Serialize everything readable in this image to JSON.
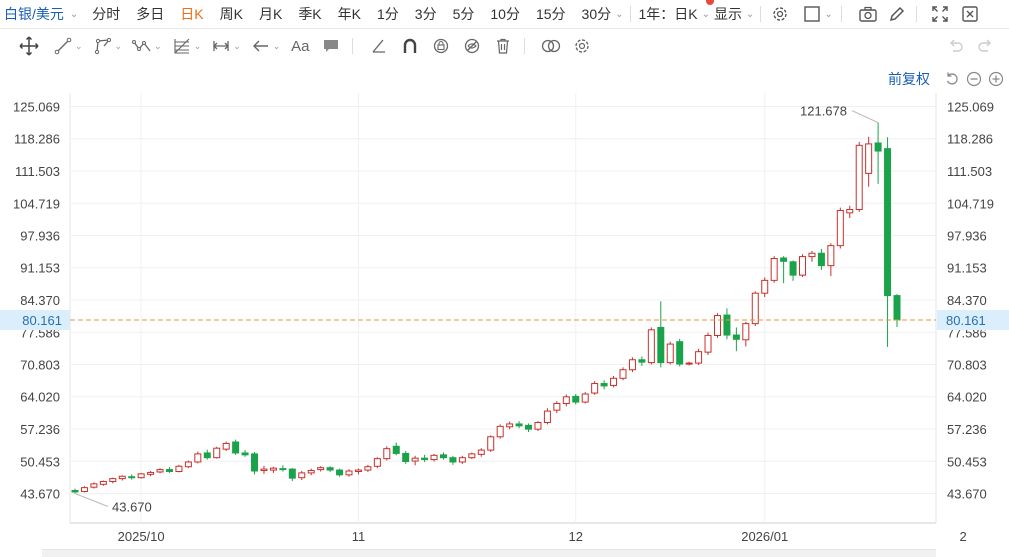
{
  "toolbar": {
    "symbol": "白银/美元",
    "periods": [
      "分时",
      "多日",
      "日K",
      "周K",
      "月K",
      "季K",
      "年K",
      "1分",
      "3分",
      "5分",
      "10分",
      "15分",
      "30分"
    ],
    "active_period": "日K",
    "range_select": "1年：日K",
    "display_menu": "显示"
  },
  "drawing_tools": [
    "move-icon",
    "line-icon",
    "polyline-icon",
    "zigzag-icon",
    "fib-icon",
    "measure-icon",
    "arrow-icon",
    "text-icon",
    "comment-icon",
    "ruler-icon",
    "magnet-icon",
    "lock-icon",
    "hide-icon",
    "trash-icon",
    "visibility-icon",
    "settings-icon"
  ],
  "adjust_label": "前复权",
  "current_price_label": "80.161",
  "max_label": "121.678",
  "min_label": "43.670",
  "colors": {
    "up": "#c9302c",
    "down": "#1aa34a",
    "accent": "#e8711c",
    "link": "#1a5fb4",
    "price_line": "#e8913c"
  },
  "chart_data": {
    "type": "candlestick",
    "title": "白银/美元",
    "xlabel": "",
    "ylabel": "",
    "ylim": [
      40.262,
      128.478
    ],
    "y_ticks": [
      43.67,
      50.453,
      57.236,
      64.02,
      70.803,
      77.586,
      84.37,
      91.153,
      97.936,
      104.719,
      111.503,
      118.286,
      125.069
    ],
    "x_ticks": [
      "2025/10",
      "11",
      "12",
      "2026/01",
      "2"
    ],
    "current_price": 80.161,
    "max": 121.678,
    "min": 43.67,
    "candles": [
      {
        "o": 44.3,
        "h": 44.7,
        "l": 43.67,
        "c": 44.0
      },
      {
        "o": 44.1,
        "h": 45.2,
        "l": 43.9,
        "c": 44.9
      },
      {
        "o": 45.0,
        "h": 46.0,
        "l": 44.7,
        "c": 45.7
      },
      {
        "o": 45.6,
        "h": 46.4,
        "l": 45.3,
        "c": 46.2
      },
      {
        "o": 46.2,
        "h": 47.0,
        "l": 45.8,
        "c": 46.8
      },
      {
        "o": 46.8,
        "h": 47.5,
        "l": 46.4,
        "c": 47.3
      },
      {
        "o": 47.2,
        "h": 47.7,
        "l": 46.6,
        "c": 47.0
      },
      {
        "o": 47.0,
        "h": 48.0,
        "l": 46.8,
        "c": 47.8
      },
      {
        "o": 47.7,
        "h": 48.4,
        "l": 47.3,
        "c": 48.1
      },
      {
        "o": 48.2,
        "h": 49.0,
        "l": 47.9,
        "c": 48.7
      },
      {
        "o": 48.7,
        "h": 49.2,
        "l": 48.0,
        "c": 48.3
      },
      {
        "o": 48.3,
        "h": 49.7,
        "l": 48.1,
        "c": 49.4
      },
      {
        "o": 49.3,
        "h": 50.6,
        "l": 49.0,
        "c": 50.3
      },
      {
        "o": 50.3,
        "h": 52.5,
        "l": 50.0,
        "c": 52.0
      },
      {
        "o": 52.2,
        "h": 52.9,
        "l": 50.8,
        "c": 51.2
      },
      {
        "o": 51.2,
        "h": 53.5,
        "l": 51.0,
        "c": 53.2
      },
      {
        "o": 53.0,
        "h": 54.6,
        "l": 52.6,
        "c": 54.2
      },
      {
        "o": 54.5,
        "h": 55.0,
        "l": 51.8,
        "c": 52.2
      },
      {
        "o": 52.2,
        "h": 52.8,
        "l": 51.4,
        "c": 51.8
      },
      {
        "o": 52.0,
        "h": 52.4,
        "l": 47.7,
        "c": 48.4
      },
      {
        "o": 48.5,
        "h": 49.5,
        "l": 47.8,
        "c": 48.8
      },
      {
        "o": 48.6,
        "h": 49.3,
        "l": 48.0,
        "c": 49.0
      },
      {
        "o": 48.9,
        "h": 49.6,
        "l": 48.3,
        "c": 48.7
      },
      {
        "o": 48.8,
        "h": 49.0,
        "l": 46.3,
        "c": 46.9
      },
      {
        "o": 47.0,
        "h": 48.4,
        "l": 46.5,
        "c": 48.0
      },
      {
        "o": 48.0,
        "h": 48.9,
        "l": 47.5,
        "c": 48.5
      },
      {
        "o": 48.7,
        "h": 49.4,
        "l": 48.3,
        "c": 49.1
      },
      {
        "o": 49.1,
        "h": 49.4,
        "l": 48.2,
        "c": 48.6
      },
      {
        "o": 48.6,
        "h": 48.9,
        "l": 47.2,
        "c": 47.6
      },
      {
        "o": 47.6,
        "h": 48.8,
        "l": 47.2,
        "c": 48.4
      },
      {
        "o": 48.3,
        "h": 48.9,
        "l": 47.7,
        "c": 48.6
      },
      {
        "o": 48.6,
        "h": 49.7,
        "l": 48.2,
        "c": 49.3
      },
      {
        "o": 49.4,
        "h": 51.3,
        "l": 49.0,
        "c": 51.0
      },
      {
        "o": 51.0,
        "h": 53.6,
        "l": 50.6,
        "c": 53.1
      },
      {
        "o": 53.6,
        "h": 54.4,
        "l": 51.7,
        "c": 52.1
      },
      {
        "o": 52.1,
        "h": 52.6,
        "l": 49.9,
        "c": 50.4
      },
      {
        "o": 50.5,
        "h": 51.6,
        "l": 49.6,
        "c": 51.1
      },
      {
        "o": 51.1,
        "h": 51.8,
        "l": 50.3,
        "c": 50.8
      },
      {
        "o": 50.8,
        "h": 52.0,
        "l": 50.4,
        "c": 51.7
      },
      {
        "o": 51.8,
        "h": 52.3,
        "l": 50.8,
        "c": 51.2
      },
      {
        "o": 51.2,
        "h": 51.6,
        "l": 49.7,
        "c": 50.3
      },
      {
        "o": 50.3,
        "h": 51.6,
        "l": 49.9,
        "c": 51.2
      },
      {
        "o": 51.2,
        "h": 52.3,
        "l": 50.9,
        "c": 52.0
      },
      {
        "o": 51.9,
        "h": 53.2,
        "l": 51.4,
        "c": 52.8
      },
      {
        "o": 52.8,
        "h": 55.9,
        "l": 52.4,
        "c": 55.6
      },
      {
        "o": 55.6,
        "h": 58.2,
        "l": 55.2,
        "c": 57.8
      },
      {
        "o": 57.7,
        "h": 58.8,
        "l": 57.2,
        "c": 58.3
      },
      {
        "o": 58.3,
        "h": 58.9,
        "l": 57.4,
        "c": 57.9
      },
      {
        "o": 58.0,
        "h": 58.4,
        "l": 56.6,
        "c": 57.2
      },
      {
        "o": 57.2,
        "h": 58.9,
        "l": 56.8,
        "c": 58.6
      },
      {
        "o": 58.6,
        "h": 61.6,
        "l": 58.2,
        "c": 61.0
      },
      {
        "o": 61.2,
        "h": 63.1,
        "l": 60.6,
        "c": 62.6
      },
      {
        "o": 62.6,
        "h": 64.5,
        "l": 62.0,
        "c": 64.0
      },
      {
        "o": 64.1,
        "h": 64.6,
        "l": 62.4,
        "c": 62.9
      },
      {
        "o": 62.9,
        "h": 65.0,
        "l": 62.6,
        "c": 64.6
      },
      {
        "o": 64.8,
        "h": 67.3,
        "l": 64.4,
        "c": 66.8
      },
      {
        "o": 66.8,
        "h": 67.5,
        "l": 65.6,
        "c": 66.3
      },
      {
        "o": 66.4,
        "h": 68.4,
        "l": 66.0,
        "c": 67.9
      },
      {
        "o": 67.9,
        "h": 70.2,
        "l": 67.5,
        "c": 69.7
      },
      {
        "o": 69.7,
        "h": 72.3,
        "l": 69.2,
        "c": 71.8
      },
      {
        "o": 71.8,
        "h": 72.5,
        "l": 70.5,
        "c": 71.3
      },
      {
        "o": 71.2,
        "h": 78.6,
        "l": 70.8,
        "c": 78.1
      },
      {
        "o": 78.6,
        "h": 84.1,
        "l": 70.2,
        "c": 71.2
      },
      {
        "o": 71.2,
        "h": 75.6,
        "l": 70.8,
        "c": 75.1
      },
      {
        "o": 75.6,
        "h": 76.2,
        "l": 70.4,
        "c": 70.9
      },
      {
        "o": 70.9,
        "h": 71.4,
        "l": 70.6,
        "c": 71.1
      },
      {
        "o": 71.1,
        "h": 74.1,
        "l": 70.7,
        "c": 73.5
      },
      {
        "o": 73.4,
        "h": 77.5,
        "l": 72.8,
        "c": 76.9
      },
      {
        "o": 76.9,
        "h": 81.6,
        "l": 76.4,
        "c": 81.1
      },
      {
        "o": 81.2,
        "h": 82.6,
        "l": 76.1,
        "c": 77.0
      },
      {
        "o": 77.0,
        "h": 78.6,
        "l": 73.6,
        "c": 76.1
      },
      {
        "o": 76.0,
        "h": 79.8,
        "l": 74.6,
        "c": 79.4
      },
      {
        "o": 79.4,
        "h": 86.2,
        "l": 78.9,
        "c": 85.8
      },
      {
        "o": 85.8,
        "h": 89.1,
        "l": 85.0,
        "c": 88.5
      },
      {
        "o": 88.5,
        "h": 93.6,
        "l": 88.0,
        "c": 93.1
      },
      {
        "o": 93.2,
        "h": 93.6,
        "l": 87.9,
        "c": 92.5
      },
      {
        "o": 92.4,
        "h": 92.7,
        "l": 88.4,
        "c": 89.6
      },
      {
        "o": 89.6,
        "h": 94.0,
        "l": 89.2,
        "c": 93.5
      },
      {
        "o": 93.5,
        "h": 94.7,
        "l": 92.4,
        "c": 94.2
      },
      {
        "o": 94.2,
        "h": 95.1,
        "l": 90.7,
        "c": 91.6
      },
      {
        "o": 91.6,
        "h": 96.3,
        "l": 89.4,
        "c": 95.8
      },
      {
        "o": 95.8,
        "h": 103.8,
        "l": 95.2,
        "c": 103.2
      },
      {
        "o": 102.7,
        "h": 104.2,
        "l": 101.6,
        "c": 103.4
      },
      {
        "o": 103.4,
        "h": 117.6,
        "l": 102.9,
        "c": 116.9
      },
      {
        "o": 111.0,
        "h": 118.7,
        "l": 108.2,
        "c": 117.2
      },
      {
        "o": 117.4,
        "h": 121.678,
        "l": 108.8,
        "c": 115.7
      },
      {
        "o": 116.2,
        "h": 118.6,
        "l": 74.5,
        "c": 85.3
      },
      {
        "o": 85.3,
        "h": 85.6,
        "l": 78.7,
        "c": 80.161
      }
    ]
  }
}
